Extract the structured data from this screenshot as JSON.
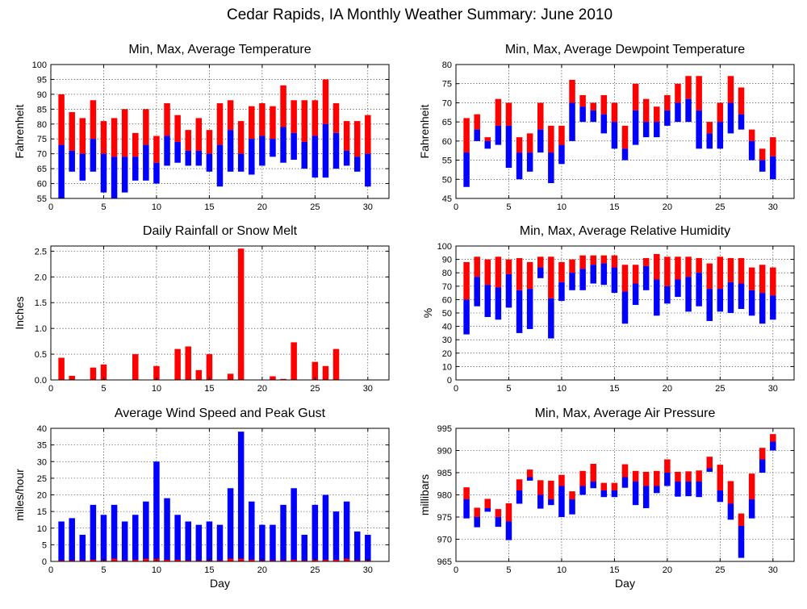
{
  "figure": {
    "title": "Cedar Rapids, IA Monthly Weather Summary: June 2010",
    "red": "#ff0000",
    "blue": "#0000ff"
  },
  "chart_data": [
    {
      "id": "temperature",
      "type": "bar",
      "title": "Min, Max, Average Temperature",
      "xlabel": "",
      "ylabel": "Fahrenheit",
      "xlim": [
        0,
        32
      ],
      "ylim": [
        55,
        100
      ],
      "yticks": [
        55,
        60,
        65,
        70,
        75,
        80,
        85,
        90,
        95,
        100
      ],
      "xticks": [
        0,
        5,
        10,
        15,
        20,
        25,
        30
      ],
      "grid": true,
      "x": [
        1,
        2,
        3,
        4,
        5,
        6,
        7,
        8,
        9,
        10,
        11,
        12,
        13,
        14,
        15,
        16,
        17,
        18,
        19,
        20,
        21,
        22,
        23,
        24,
        25,
        26,
        27,
        28,
        29,
        30
      ],
      "series": [
        {
          "role": "min",
          "color": "#0000ff",
          "values": [
            55,
            64,
            61,
            64,
            57,
            55,
            57,
            61,
            61,
            60,
            66,
            67,
            66,
            66,
            64,
            59,
            64,
            64,
            63,
            66,
            69,
            67,
            68,
            65,
            62,
            62,
            65,
            66,
            64,
            59
          ]
        },
        {
          "role": "avg",
          "values": [
            73,
            71,
            70,
            75,
            70,
            69,
            69,
            69,
            73,
            67,
            76,
            74,
            71,
            71,
            70,
            73,
            78,
            70,
            75,
            76,
            75,
            79,
            77,
            74,
            76,
            80,
            77,
            71,
            69,
            70
          ]
        },
        {
          "role": "max",
          "color": "#ff0000",
          "values": [
            90,
            84,
            82,
            88,
            81,
            82,
            85,
            77,
            85,
            76,
            87,
            83,
            78,
            82,
            78,
            87,
            88,
            81,
            86,
            87,
            86,
            93,
            88,
            88,
            88,
            95,
            87,
            81,
            81,
            83
          ]
        }
      ]
    },
    {
      "id": "dewpoint",
      "type": "bar",
      "title": "Min, Max, Average Dewpoint Temperature",
      "xlabel": "",
      "ylabel": "Fahrenheit",
      "xlim": [
        0,
        32
      ],
      "ylim": [
        45,
        80
      ],
      "yticks": [
        45,
        50,
        55,
        60,
        65,
        70,
        75,
        80
      ],
      "xticks": [
        0,
        5,
        10,
        15,
        20,
        25,
        30
      ],
      "grid": true,
      "x": [
        1,
        2,
        3,
        4,
        5,
        6,
        7,
        8,
        9,
        10,
        11,
        12,
        13,
        14,
        15,
        16,
        17,
        18,
        19,
        20,
        21,
        22,
        23,
        24,
        25,
        26,
        27,
        28,
        29,
        30
      ],
      "series": [
        {
          "role": "min",
          "color": "#0000ff",
          "values": [
            48,
            60,
            58,
            59,
            53,
            50,
            52,
            57,
            49,
            54,
            60,
            65,
            65,
            62,
            58,
            55,
            59,
            61,
            61,
            64,
            65,
            65,
            58,
            58,
            58,
            62,
            63,
            55,
            52,
            50
          ]
        },
        {
          "role": "avg",
          "values": [
            57,
            63,
            60,
            64,
            64,
            57,
            57,
            63,
            57,
            59,
            70,
            69,
            68,
            67,
            65,
            58,
            68,
            65,
            65,
            68,
            70,
            71,
            68,
            62,
            65,
            70,
            67,
            60,
            55,
            56
          ]
        },
        {
          "role": "max",
          "color": "#ff0000",
          "values": [
            66,
            67,
            61,
            71,
            70,
            61,
            62,
            70,
            64,
            64,
            76,
            72,
            70,
            72,
            70,
            64,
            75,
            71,
            69,
            72,
            75,
            77,
            77,
            65,
            70,
            77,
            74,
            63,
            58,
            61
          ]
        }
      ]
    },
    {
      "id": "rainfall",
      "type": "bar",
      "title": "Daily Rainfall or Snow Melt",
      "xlabel": "",
      "ylabel": "Inches",
      "xlim": [
        0,
        32
      ],
      "ylim": [
        0,
        2.6
      ],
      "yticks": [
        0.0,
        0.5,
        1.0,
        1.5,
        2.0,
        2.5
      ],
      "ytick_labels": [
        "0.0",
        "0.5",
        "1.0",
        "1.5",
        "2.0",
        "2.5"
      ],
      "xticks": [
        0,
        5,
        10,
        15,
        20,
        25,
        30
      ],
      "grid": true,
      "x": [
        1,
        2,
        3,
        4,
        5,
        6,
        7,
        8,
        9,
        10,
        11,
        12,
        13,
        14,
        15,
        16,
        17,
        18,
        19,
        20,
        21,
        22,
        23,
        24,
        25,
        26,
        27,
        28,
        29,
        30
      ],
      "series": [
        {
          "role": "precip",
          "color": "#ff0000",
          "values": [
            0.43,
            0.08,
            0,
            0.24,
            0.3,
            0,
            0,
            0.5,
            0,
            0.27,
            0,
            0.6,
            0.65,
            0.19,
            0.5,
            0,
            0.12,
            2.55,
            0,
            0,
            0.07,
            0.02,
            0.73,
            0,
            0.35,
            0.27,
            0.6,
            0,
            0,
            0
          ]
        }
      ]
    },
    {
      "id": "humidity",
      "type": "bar",
      "title": "Min, Max, Average Relative Humidity",
      "xlabel": "",
      "ylabel": "%",
      "xlim": [
        0,
        32
      ],
      "ylim": [
        0,
        100
      ],
      "yticks": [
        0,
        10,
        20,
        30,
        40,
        50,
        60,
        70,
        80,
        90,
        100
      ],
      "xticks": [
        0,
        5,
        10,
        15,
        20,
        25,
        30
      ],
      "grid": true,
      "x": [
        1,
        2,
        3,
        4,
        5,
        6,
        7,
        8,
        9,
        10,
        11,
        12,
        13,
        14,
        15,
        16,
        17,
        18,
        19,
        20,
        21,
        22,
        23,
        24,
        25,
        26,
        27,
        28,
        29,
        30
      ],
      "series": [
        {
          "role": "min",
          "color": "#0000ff",
          "values": [
            34,
            55,
            47,
            45,
            54,
            35,
            38,
            76,
            31,
            59,
            67,
            67,
            72,
            71,
            65,
            42,
            56,
            67,
            48,
            57,
            62,
            51,
            55,
            44,
            51,
            50,
            53,
            48,
            42,
            45
          ]
        },
        {
          "role": "avg",
          "values": [
            60,
            77,
            71,
            69,
            79,
            67,
            68,
            84,
            61,
            73,
            80,
            83,
            86,
            87,
            84,
            66,
            72,
            85,
            75,
            70,
            75,
            77,
            80,
            68,
            68,
            73,
            72,
            67,
            65,
            63
          ]
        },
        {
          "role": "max",
          "color": "#ff0000",
          "values": [
            88,
            92,
            90,
            92,
            90,
            91,
            88,
            92,
            92,
            88,
            90,
            93,
            93,
            93,
            93,
            86,
            86,
            91,
            94,
            92,
            92,
            92,
            91,
            87,
            92,
            91,
            91,
            84,
            86,
            84
          ]
        }
      ]
    },
    {
      "id": "wind",
      "type": "bar",
      "title": "Average Wind Speed and Peak Gust",
      "xlabel": "Day",
      "ylabel": "miles/hour",
      "xlim": [
        0,
        32
      ],
      "ylim": [
        0,
        40
      ],
      "yticks": [
        0,
        5,
        10,
        15,
        20,
        25,
        30,
        35,
        40
      ],
      "xticks": [
        0,
        5,
        10,
        15,
        20,
        25,
        30
      ],
      "grid": true,
      "x": [
        1,
        2,
        3,
        4,
        5,
        6,
        7,
        8,
        9,
        10,
        11,
        12,
        13,
        14,
        15,
        16,
        17,
        18,
        19,
        20,
        21,
        22,
        23,
        24,
        25,
        26,
        27,
        28,
        29,
        30
      ],
      "series": [
        {
          "role": "peak_gust",
          "color": "#0000ff",
          "values": [
            12,
            13,
            8,
            17,
            14,
            17,
            12,
            14,
            18,
            30,
            19,
            14,
            12,
            11,
            12,
            11,
            22,
            39,
            18,
            11,
            11,
            17,
            22,
            8,
            17,
            20,
            15,
            18,
            9,
            8
          ]
        },
        {
          "role": "avg_speed",
          "color": "#ff0000",
          "values": [
            0.3,
            0.3,
            0.3,
            0.5,
            0.3,
            0.8,
            0.3,
            0.5,
            0.8,
            0.8,
            0.5,
            0.5,
            0.3,
            0.3,
            0.3,
            0.3,
            0.8,
            0.8,
            0.5,
            0.3,
            0.3,
            0.3,
            0.5,
            0.3,
            0.5,
            0.5,
            0.5,
            0.8,
            0.3,
            0.3
          ]
        }
      ]
    },
    {
      "id": "pressure",
      "type": "bar",
      "title": "Min, Max, Average Air Pressure",
      "xlabel": "Day",
      "ylabel": "millibars",
      "xlim": [
        0,
        32
      ],
      "ylim": [
        965,
        995
      ],
      "yticks": [
        965,
        970,
        975,
        980,
        985,
        990,
        995
      ],
      "xticks": [
        0,
        5,
        10,
        15,
        20,
        25,
        30
      ],
      "grid": true,
      "x": [
        1,
        2,
        3,
        4,
        5,
        6,
        7,
        8,
        9,
        10,
        11,
        12,
        13,
        14,
        15,
        16,
        17,
        18,
        19,
        20,
        21,
        22,
        23,
        24,
        25,
        26,
        27,
        28,
        29,
        30
      ],
      "series": [
        {
          "role": "min",
          "color": "#0000ff",
          "values": [
            974.7,
            972.7,
            976.2,
            972.8,
            969.8,
            978.0,
            983.2,
            976.9,
            977.7,
            975.0,
            975.6,
            980.0,
            981.5,
            979.5,
            979.5,
            981.6,
            977.7,
            977.0,
            980.4,
            982.0,
            979.6,
            979.7,
            979.5,
            985.2,
            978.4,
            974.4,
            965.8,
            974.7,
            985.0,
            990.0
          ]
        },
        {
          "role": "avg",
          "values": [
            979,
            975,
            977,
            975,
            974,
            981,
            984,
            980,
            979,
            982,
            979,
            982,
            983,
            981,
            981,
            984,
            983,
            982,
            982,
            985,
            983,
            983,
            983,
            986,
            981,
            978,
            973,
            979,
            988,
            992
          ]
        },
        {
          "role": "max",
          "color": "#ff0000",
          "values": [
            981.7,
            977.1,
            979.1,
            976.8,
            978.1,
            983.5,
            985.7,
            983.3,
            983.2,
            984.5,
            980.8,
            985.4,
            987.0,
            982.7,
            982.7,
            986.9,
            985.4,
            985.2,
            985.4,
            988.0,
            985.2,
            985.3,
            985.5,
            988.6,
            986.8,
            983.1,
            975.8,
            984.8,
            990.6,
            993.7
          ]
        }
      ]
    }
  ]
}
